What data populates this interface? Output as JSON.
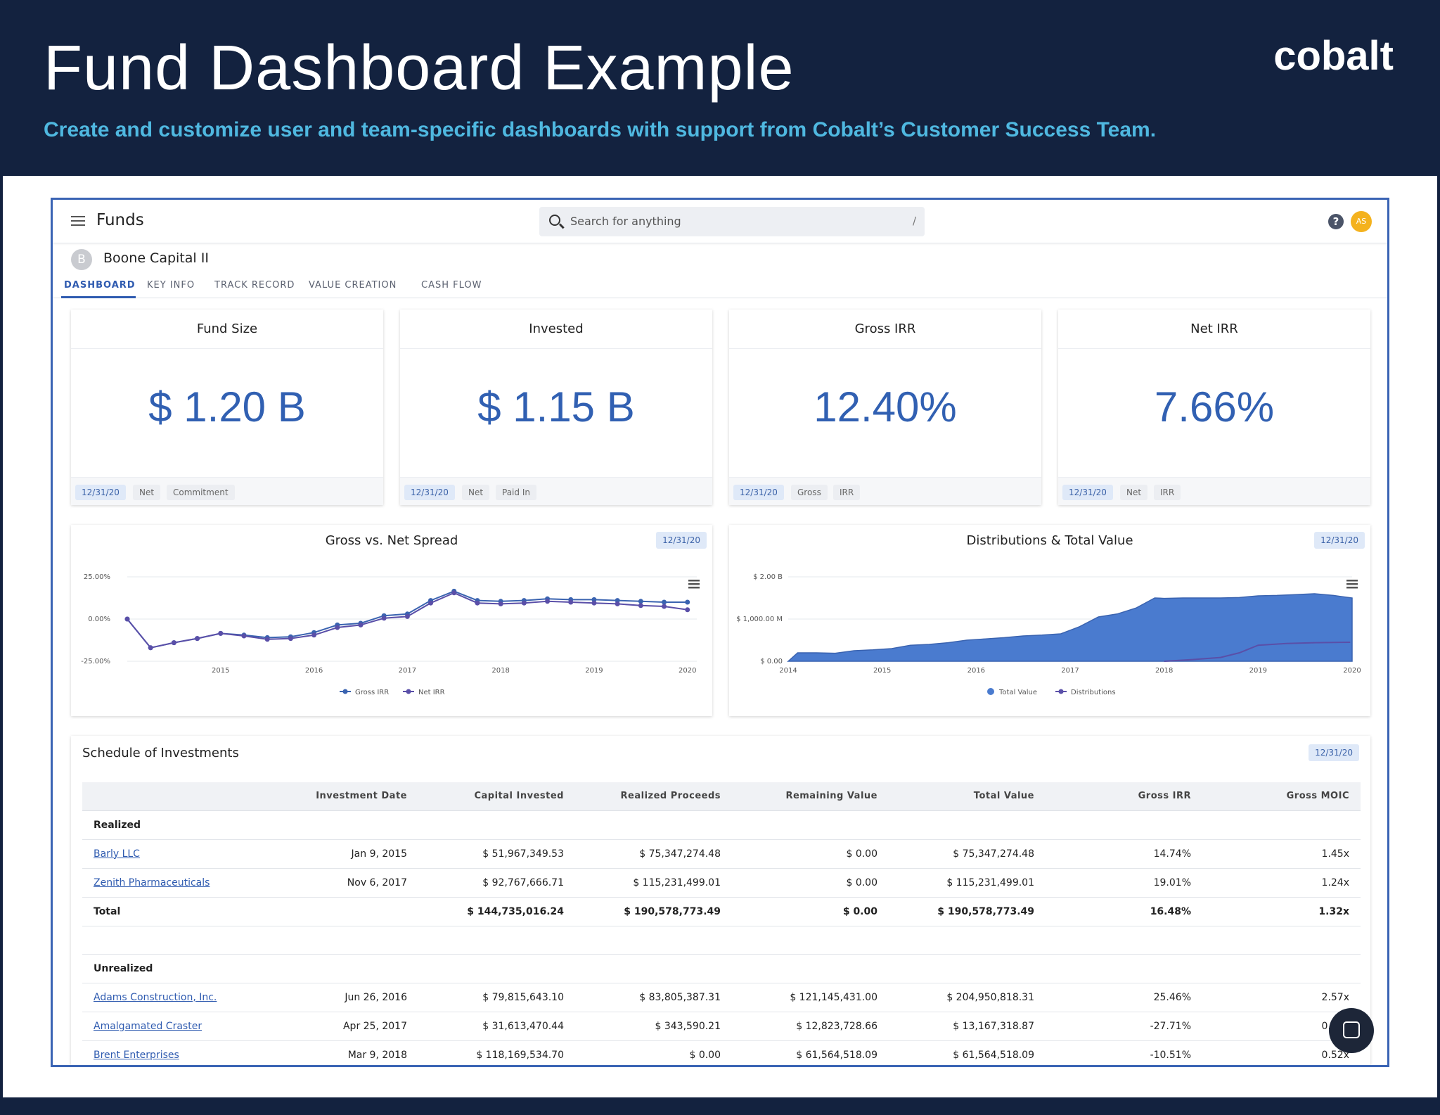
{
  "hero": {
    "title": "Fund Dashboard Example",
    "subtitle": "Create and customize user and team-specific dashboards with support from Cobalt’s Customer Success Team.",
    "logo": "cobalt"
  },
  "topbar": {
    "app_title": "Funds",
    "search_placeholder": "Search for anything",
    "search_shortcut": "/",
    "help_label": "?",
    "avatar_initials": "AS"
  },
  "fund": {
    "initial": "B",
    "name": "Boone Capital II"
  },
  "tabs": [
    {
      "label": "DASHBOARD",
      "active": true
    },
    {
      "label": "KEY INFO"
    },
    {
      "label": "TRACK RECORD"
    },
    {
      "label": "VALUE CREATION"
    },
    {
      "label": "CASH FLOW"
    }
  ],
  "kpis": [
    {
      "title": "Fund Size",
      "value": "$ 1.20 B",
      "chips": [
        "12/31/20",
        "Net",
        "Commitment"
      ]
    },
    {
      "title": "Invested",
      "value": "$ 1.15 B",
      "chips": [
        "12/31/20",
        "Net",
        "Paid In"
      ]
    },
    {
      "title": "Gross IRR",
      "value": "12.40%",
      "chips": [
        "12/31/20",
        "Gross",
        "IRR"
      ]
    },
    {
      "title": "Net IRR",
      "value": "7.66%",
      "chips": [
        "12/31/20",
        "Net",
        "IRR"
      ]
    }
  ],
  "chart_data": [
    {
      "type": "line",
      "title": "Gross vs. Net Spread",
      "date": "12/31/20",
      "y_ticks": [
        "25.00%",
        "0.00%",
        "-25.00%"
      ],
      "ylim": [
        -25,
        25
      ],
      "x_ticks": [
        "2015",
        "2016",
        "2017",
        "2018",
        "2019",
        "2020"
      ],
      "xlim": [
        2014.0,
        2020.1
      ],
      "x": [
        2014.0,
        2014.25,
        2014.5,
        2014.75,
        2015.0,
        2015.25,
        2015.5,
        2015.75,
        2016.0,
        2016.25,
        2016.5,
        2016.75,
        2017.0,
        2017.25,
        2017.5,
        2017.75,
        2018.0,
        2018.25,
        2018.5,
        2018.75,
        2019.0,
        2019.25,
        2019.5,
        2019.75,
        2020.0
      ],
      "series": [
        {
          "name": "Gross IRR",
          "color": "#3a63b0",
          "values": [
            0.0,
            -17.0,
            -14.0,
            -11.5,
            -8.5,
            -9.5,
            -11.0,
            -10.5,
            -8.0,
            -3.5,
            -2.5,
            2.0,
            3.0,
            11.0,
            16.5,
            11.0,
            10.5,
            11.0,
            12.0,
            11.5,
            11.5,
            11.0,
            10.5,
            10.0,
            10.0
          ]
        },
        {
          "name": "Net IRR",
          "color": "#5a4fa8",
          "values": [
            0.0,
            -17.0,
            -14.0,
            -11.5,
            -8.5,
            -10.0,
            -12.0,
            -11.5,
            -9.5,
            -5.0,
            -3.5,
            0.5,
            1.5,
            9.5,
            15.5,
            9.5,
            9.0,
            9.5,
            10.5,
            10.0,
            9.5,
            9.0,
            8.0,
            7.5,
            5.5
          ]
        }
      ]
    },
    {
      "type": "area",
      "title": "Distributions & Total Value",
      "date": "12/31/20",
      "y_ticks": [
        "$ 2.00 B",
        "$ 1,000.00 M",
        "$ 0.00"
      ],
      "ylim": [
        0,
        2000
      ],
      "x_ticks": [
        "2014",
        "2015",
        "2016",
        "2017",
        "2018",
        "2019",
        "2020"
      ],
      "xlim": [
        2014.0,
        2020.0
      ],
      "series": [
        {
          "name": "Total Value",
          "color": "#4a7bcf",
          "x": [
            2014.0,
            2014.1,
            2014.3,
            2014.5,
            2014.7,
            2014.9,
            2015.1,
            2015.3,
            2015.5,
            2015.7,
            2015.9,
            2016.1,
            2016.3,
            2016.5,
            2016.7,
            2016.9,
            2017.1,
            2017.3,
            2017.5,
            2017.7,
            2017.9,
            2018.0,
            2018.2,
            2018.4,
            2018.6,
            2018.8,
            2019.0,
            2019.2,
            2019.4,
            2019.6,
            2019.8,
            2020.0
          ],
          "values": [
            0,
            200,
            200,
            190,
            250,
            270,
            300,
            380,
            400,
            440,
            500,
            530,
            560,
            600,
            620,
            650,
            820,
            1050,
            1120,
            1260,
            1500,
            1490,
            1500,
            1500,
            1500,
            1510,
            1550,
            1560,
            1580,
            1600,
            1560,
            1500
          ]
        },
        {
          "name": "Distributions",
          "color": "#5a4fa8",
          "x": [
            2018.0,
            2018.3,
            2018.6,
            2018.8,
            2019.0,
            2019.3,
            2019.6,
            2019.98
          ],
          "values": [
            0,
            40,
            90,
            200,
            380,
            420,
            440,
            450
          ]
        }
      ]
    }
  ],
  "schedule": {
    "title": "Schedule of Investments",
    "date": "12/31/20",
    "columns": [
      "",
      "Investment Date",
      "Capital Invested",
      "Realized Proceeds",
      "Remaining Value",
      "Total Value",
      "Gross IRR",
      "Gross MOIC"
    ],
    "realized_label": "Realized",
    "realized": [
      [
        "Barly LLC",
        "Jan 9, 2015",
        "$ 51,967,349.53",
        "$ 75,347,274.48",
        "$ 0.00",
        "$ 75,347,274.48",
        "14.74%",
        "1.45x"
      ],
      [
        "Zenith Pharmaceuticals",
        "Nov 6, 2017",
        "$ 92,767,666.71",
        "$ 115,231,499.01",
        "$ 0.00",
        "$ 115,231,499.01",
        "19.01%",
        "1.24x"
      ]
    ],
    "realized_total": [
      "Total",
      "",
      "$ 144,735,016.24",
      "$ 190,578,773.49",
      "$ 0.00",
      "$ 190,578,773.49",
      "16.48%",
      "1.32x"
    ],
    "unrealized_label": "Unrealized",
    "unrealized": [
      [
        "Adams Construction, Inc.",
        "Jun 26, 2016",
        "$ 79,815,643.10",
        "$ 83,805,387.31",
        "$ 121,145,431.00",
        "$ 204,950,818.31",
        "25.46%",
        "2.57x"
      ],
      [
        "Amalgamated Craster",
        "Apr 25, 2017",
        "$ 31,613,470.44",
        "$ 343,590.21",
        "$ 12,823,728.66",
        "$ 13,167,318.87",
        "-27.71%",
        "0.42x"
      ],
      [
        "Brent Enterprises",
        "Mar 9, 2018",
        "$ 118,169,534.70",
        "$ 0.00",
        "$ 61,564,518.09",
        "$ 61,564,518.09",
        "-10.51%",
        "0.52x"
      ]
    ]
  }
}
